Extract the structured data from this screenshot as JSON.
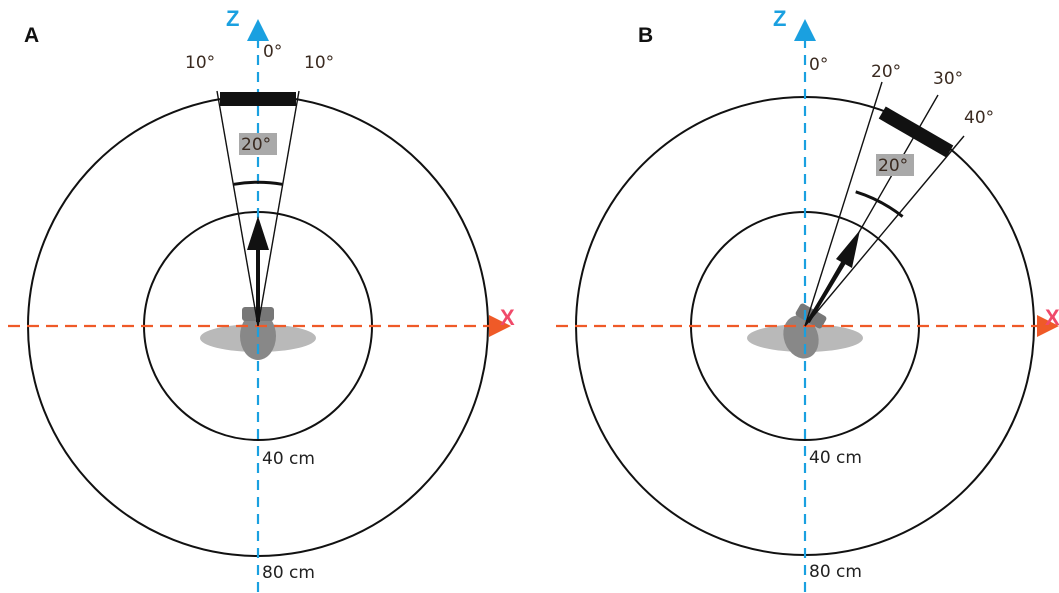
{
  "colors": {
    "z_axis": "#1aa0e0",
    "x_axis": "#ef5a28",
    "x_label": "#f04a6a",
    "ring": "#111111",
    "screen_bar": "#111111",
    "head_gray": "#888888",
    "shoulders_gray": "#b9b9b9",
    "angle_box": "#a9a9a9"
  },
  "icons": {
    "head": "head-top-view-icon",
    "arrow": "facing-arrow-icon"
  },
  "panel_a": {
    "label": "A",
    "z_label": "Z",
    "x_label": "X",
    "angle_zero": "0°",
    "angle_left": "10°",
    "angle_right": "10°",
    "span": "20°",
    "inner_radius": "40 cm",
    "outer_radius": "80 cm"
  },
  "panel_b": {
    "label": "B",
    "z_label": "Z",
    "x_label": "X",
    "angle_zero": "0°",
    "angle_1": "20°",
    "angle_2": "30°",
    "angle_3": "40°",
    "span": "20°",
    "inner_radius": "40 cm",
    "outer_radius": "80 cm"
  }
}
